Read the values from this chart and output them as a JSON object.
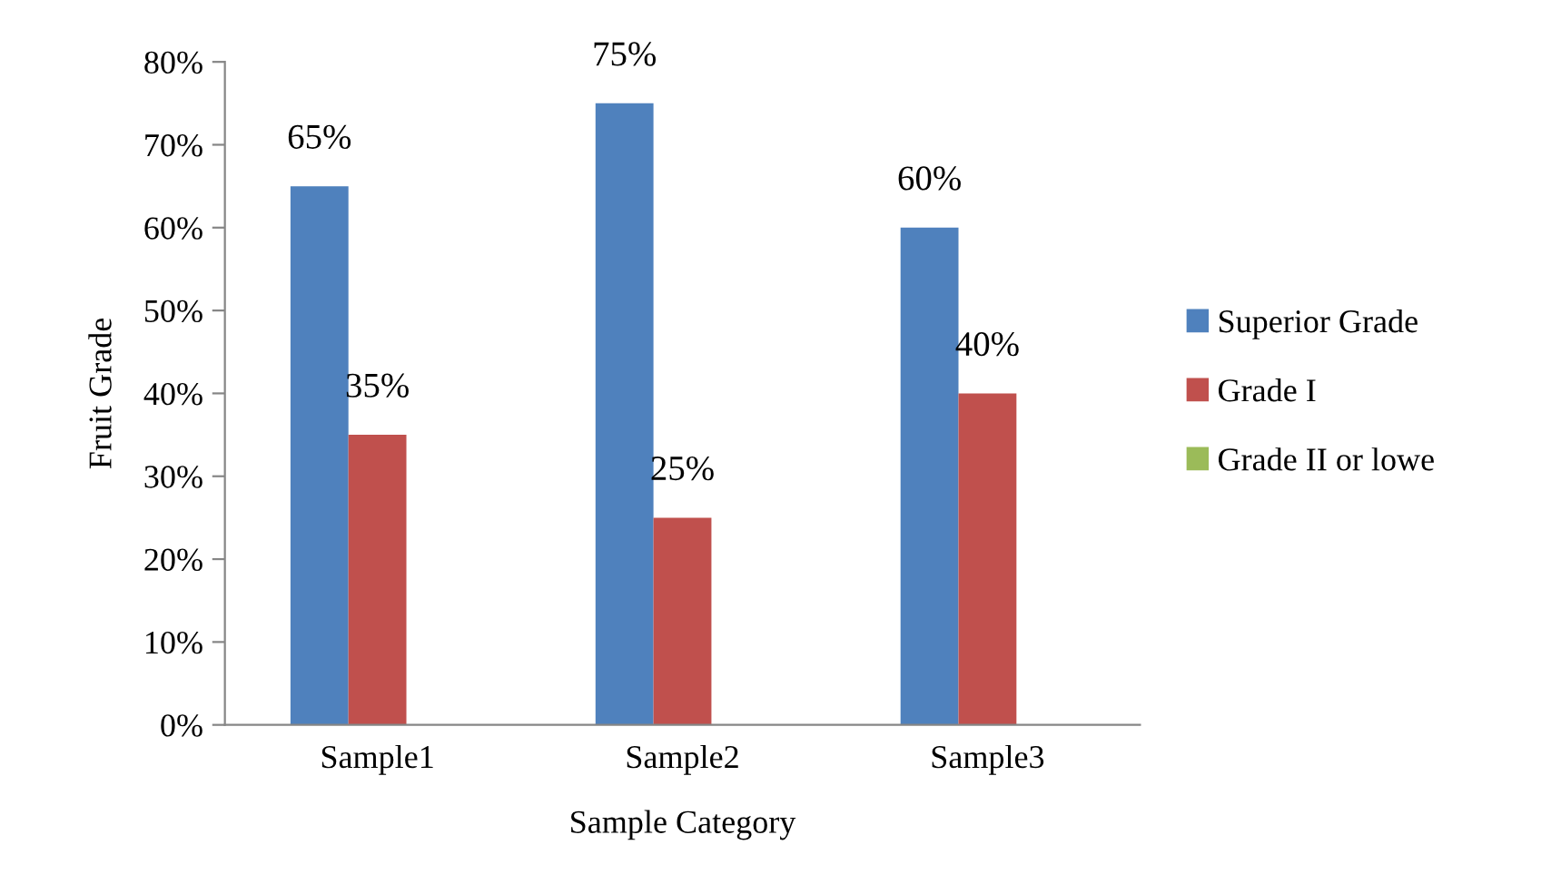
{
  "chart_data": {
    "type": "bar",
    "xlabel": "Sample Category",
    "ylabel": "Fruit Grade",
    "categories": [
      "Sample1",
      "Sample2",
      "Sample3"
    ],
    "series": [
      {
        "name": "Superior Grade",
        "color": "#4f81bd",
        "values": [
          65,
          75,
          60
        ],
        "value_labels": [
          "65%",
          "75%",
          "60%"
        ]
      },
      {
        "name": "Grade I",
        "color": "#c0504d",
        "values": [
          35,
          25,
          40
        ],
        "value_labels": [
          "35%",
          "25%",
          "40%"
        ]
      },
      {
        "name": "Grade II or lowe",
        "color": "#9bbb59",
        "values": [
          0,
          0,
          0
        ],
        "value_labels": [
          null,
          null,
          null
        ]
      }
    ],
    "ylim": [
      0,
      80
    ],
    "yticks": [
      {
        "value": 0,
        "label": "0%"
      },
      {
        "value": 10,
        "label": "10%"
      },
      {
        "value": 20,
        "label": "20%"
      },
      {
        "value": 30,
        "label": "30%"
      },
      {
        "value": 40,
        "label": "40%"
      },
      {
        "value": 50,
        "label": "50%"
      },
      {
        "value": 60,
        "label": "60%"
      },
      {
        "value": 70,
        "label": "70%"
      },
      {
        "value": 80,
        "label": "80%"
      }
    ],
    "grid": false,
    "legend": "right"
  }
}
